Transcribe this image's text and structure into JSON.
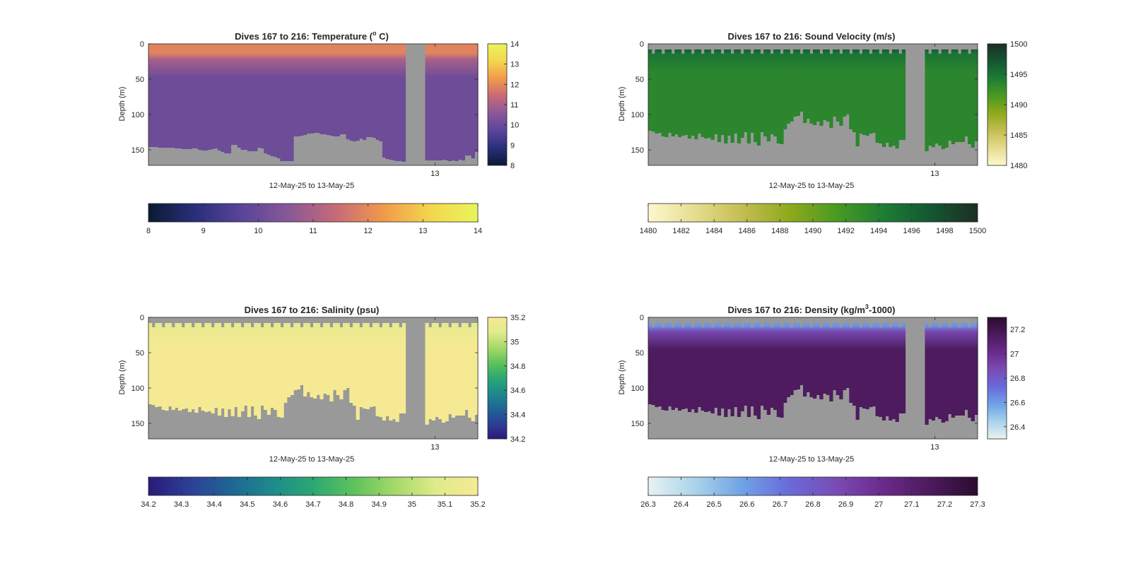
{
  "figure": {
    "background": "#ffffff",
    "nodata_color": "#999999",
    "frame_color": "#262626"
  },
  "chart_data": [
    {
      "id": "temperature",
      "type": "heatmap",
      "title": "Dives 167 to 216: Temperature (",
      "title_sup": "o",
      "title_end": " C)",
      "xlabel": "12-May-25 to 13-May-25",
      "ylabel": "Depth (m)",
      "ylim": [
        0,
        172
      ],
      "y_reversed": true,
      "yticks": [
        0,
        50,
        100,
        150
      ],
      "x_tick_labels": [
        "13"
      ],
      "x_tick_fraction": [
        0.87
      ],
      "clim": [
        8,
        14
      ],
      "colorbar_ticks": [
        8,
        9,
        10,
        11,
        12,
        13,
        14
      ],
      "colormap": [
        "#0a1a33",
        "#2a2f7a",
        "#5a459a",
        "#8a5896",
        "#c86a78",
        "#f19a4a",
        "#f3d64e",
        "#e8f55c"
      ],
      "profiles": {
        "n": 100,
        "gap": [
          0.778,
          0.84
        ],
        "bottom_depth": [
          146,
          146,
          146,
          147,
          147,
          147,
          147,
          147,
          148,
          148,
          149,
          149,
          149,
          148,
          148,
          150,
          151,
          151,
          150,
          149,
          148,
          151,
          153,
          155,
          155,
          143,
          143,
          147,
          150,
          150,
          152,
          152,
          152,
          147,
          148,
          155,
          157,
          159,
          160,
          162,
          166,
          166,
          166,
          166,
          131,
          131,
          130,
          129,
          127,
          127,
          126,
          126,
          128,
          128,
          129,
          130,
          131,
          131,
          128,
          128,
          135,
          137,
          138,
          137,
          134,
          136,
          132,
          132,
          133,
          136,
          138,
          161,
          163,
          164,
          165,
          166,
          166,
          167,
          167,
          167,
          166,
          166,
          166,
          166,
          165,
          165,
          165,
          165,
          165,
          164,
          165,
          166,
          165,
          166,
          164,
          165,
          158,
          158,
          162,
          153
        ],
        "surface_value": 11.9,
        "surface_depth": 22,
        "deep_value": 10.05
      }
    },
    {
      "id": "sound-velocity",
      "type": "heatmap",
      "title": "Dives 167 to 216: Sound Velocity (m/s)",
      "xlabel": "12-May-25 to 13-May-25",
      "ylabel": "Depth (m)",
      "ylim": [
        0,
        172
      ],
      "y_reversed": true,
      "yticks": [
        0,
        50,
        100,
        150
      ],
      "x_tick_labels": [
        "13"
      ],
      "x_tick_fraction": [
        0.87
      ],
      "clim": [
        1480,
        1500
      ],
      "colorbar_ticks": [
        1480,
        1482,
        1484,
        1486,
        1488,
        1490,
        1492,
        1494,
        1496,
        1498,
        1500
      ],
      "colorbar_side_ticks": [
        1480,
        1485,
        1490,
        1495,
        1500
      ],
      "colormap": [
        "#fdf8cf",
        "#e6dc8f",
        "#c3bd52",
        "#8fa91c",
        "#4a9a22",
        "#1d7d34",
        "#145733",
        "#1c2e22"
      ],
      "profiles": {
        "n": 100,
        "gap": [
          0.778,
          0.84
        ],
        "top_depth": [
          8,
          14,
          8,
          8,
          14,
          8,
          8,
          14,
          8,
          8,
          14,
          8,
          8,
          14,
          8,
          8,
          14,
          8,
          8,
          14,
          8,
          8,
          14,
          8,
          8,
          14,
          8,
          8,
          14,
          8,
          8,
          14,
          8,
          8,
          14,
          8,
          8,
          14,
          8,
          8,
          14,
          8,
          8,
          14,
          8,
          8,
          14,
          8,
          8,
          14,
          8,
          8,
          14,
          8,
          8,
          14,
          8,
          8,
          14,
          8,
          8,
          14,
          8,
          8,
          14,
          8,
          8,
          14,
          8,
          8,
          14,
          8,
          8,
          14,
          8,
          8,
          14,
          8,
          8,
          14,
          8,
          8,
          14,
          8,
          8,
          14,
          8,
          8,
          14,
          8,
          8,
          14,
          8,
          8,
          14,
          8,
          8,
          14,
          8,
          8
        ],
        "bottom_depth": [
          123,
          124,
          127,
          126,
          131,
          132,
          126,
          131,
          128,
          132,
          130,
          129,
          134,
          130,
          135,
          127,
          132,
          134,
          133,
          136,
          128,
          139,
          129,
          141,
          130,
          140,
          127,
          141,
          133,
          125,
          141,
          126,
          139,
          144,
          125,
          131,
          138,
          128,
          131,
          141,
          142,
          121,
          113,
          110,
          103,
          102,
          96,
          112,
          106,
          113,
          115,
          110,
          116,
          108,
          110,
          119,
          103,
          110,
          116,
          103,
          100,
          121,
          125,
          145,
          127,
          129,
          130,
          127,
          126,
          140,
          141,
          146,
          140,
          146,
          144,
          148,
          136,
          136,
          135,
          145,
          144,
          137,
          138,
          151,
          152,
          144,
          146,
          141,
          144,
          149,
          147,
          137,
          142,
          139,
          139,
          139,
          131,
          142,
          147,
          138
        ],
        "surface_value": 1496.6,
        "surface_depth": 14,
        "deep_value": 1493.4
      }
    },
    {
      "id": "salinity",
      "type": "heatmap",
      "title": "Dives 167 to 216: Salinity (psu)",
      "xlabel": "12-May-25 to 13-May-25",
      "ylabel": "Depth (m)",
      "ylim": [
        0,
        172
      ],
      "y_reversed": true,
      "yticks": [
        0,
        50,
        100,
        150
      ],
      "x_tick_labels": [
        "13"
      ],
      "x_tick_fraction": [
        0.87
      ],
      "clim": [
        34.2,
        35.2
      ],
      "colorbar_ticks": [
        34.2,
        34.3,
        34.4,
        34.5,
        34.6,
        34.7,
        34.8,
        34.9,
        35,
        35.1,
        35.2
      ],
      "colorbar_side_ticks": [
        34.2,
        34.4,
        34.6,
        34.8,
        35,
        35.2
      ],
      "colormap": [
        "#2b1a7a",
        "#2c3f96",
        "#1f6596",
        "#1e8a8c",
        "#2aa872",
        "#5fc25a",
        "#a6d96a",
        "#e0eb8a",
        "#f7ea94"
      ],
      "profiles": {
        "n": 100,
        "gap": [
          0.778,
          0.84
        ],
        "top_depth": [
          8,
          14,
          8,
          8,
          14,
          8,
          8,
          14,
          8,
          8,
          14,
          8,
          8,
          14,
          8,
          8,
          14,
          8,
          8,
          14,
          8,
          8,
          14,
          8,
          8,
          14,
          8,
          8,
          14,
          8,
          8,
          14,
          8,
          8,
          14,
          8,
          8,
          14,
          8,
          8,
          14,
          8,
          8,
          14,
          8,
          8,
          14,
          8,
          8,
          14,
          8,
          8,
          14,
          8,
          8,
          14,
          8,
          8,
          14,
          8,
          8,
          14,
          8,
          8,
          14,
          8,
          8,
          14,
          8,
          8,
          14,
          8,
          8,
          14,
          8,
          8,
          14,
          8,
          8,
          14,
          8,
          8,
          14,
          8,
          8,
          14,
          8,
          8,
          14,
          8,
          8,
          14,
          8,
          8,
          14,
          8,
          8,
          14,
          8,
          8
        ],
        "bottom_depth": [
          123,
          124,
          127,
          126,
          131,
          132,
          126,
          131,
          128,
          132,
          130,
          129,
          134,
          130,
          135,
          127,
          132,
          134,
          133,
          136,
          128,
          139,
          129,
          141,
          130,
          140,
          127,
          141,
          133,
          125,
          141,
          126,
          139,
          144,
          125,
          131,
          138,
          128,
          131,
          141,
          142,
          121,
          113,
          110,
          103,
          102,
          96,
          112,
          106,
          113,
          115,
          110,
          116,
          108,
          110,
          119,
          103,
          110,
          116,
          103,
          100,
          121,
          125,
          145,
          127,
          129,
          130,
          127,
          126,
          140,
          141,
          146,
          140,
          146,
          144,
          148,
          136,
          136,
          135,
          145,
          144,
          137,
          138,
          151,
          152,
          144,
          146,
          141,
          144,
          149,
          147,
          137,
          142,
          139,
          139,
          139,
          131,
          142,
          147,
          138
        ],
        "surface_value": 35.1,
        "surface_depth": 18,
        "deep_value": 35.19
      }
    },
    {
      "id": "density",
      "type": "heatmap",
      "title": "Dives 167 to 216: Density (kg/m",
      "title_sup": "3",
      "title_end": "-1000)",
      "xlabel": "12-May-25 to 13-May-25",
      "ylabel": "Depth (m)",
      "ylim": [
        0,
        172
      ],
      "y_reversed": true,
      "yticks": [
        0,
        50,
        100,
        150
      ],
      "x_tick_labels": [
        "13"
      ],
      "x_tick_fraction": [
        0.87
      ],
      "clim": [
        26.3,
        27.3
      ],
      "colorbar_ticks": [
        26.3,
        26.4,
        26.5,
        26.6,
        26.7,
        26.8,
        26.9,
        27,
        27.1,
        27.2,
        27.3
      ],
      "colorbar_side_ticks": [
        26.4,
        26.6,
        26.8,
        27,
        27.2
      ],
      "colormap": [
        "#e9f2f2",
        "#a9d3ea",
        "#6fa2e6",
        "#6a6ad9",
        "#7a4bb4",
        "#6a2a8c",
        "#4b1a5c",
        "#2b0c2f"
      ],
      "profiles": {
        "n": 100,
        "gap": [
          0.778,
          0.84
        ],
        "top_depth": [
          8,
          14,
          8,
          8,
          14,
          8,
          8,
          14,
          8,
          8,
          14,
          8,
          8,
          14,
          8,
          8,
          14,
          8,
          8,
          14,
          8,
          8,
          14,
          8,
          8,
          14,
          8,
          8,
          14,
          8,
          8,
          14,
          8,
          8,
          14,
          8,
          8,
          14,
          8,
          8,
          14,
          8,
          8,
          14,
          8,
          8,
          14,
          8,
          8,
          14,
          8,
          8,
          14,
          8,
          8,
          14,
          8,
          8,
          14,
          8,
          8,
          14,
          8,
          8,
          14,
          8,
          8,
          14,
          8,
          8,
          14,
          8,
          8,
          14,
          8,
          8,
          14,
          8,
          8,
          14,
          8,
          8,
          14,
          8,
          8,
          14,
          8,
          8,
          14,
          8,
          8,
          14,
          8,
          8,
          14,
          8,
          8,
          14,
          8,
          8
        ],
        "bottom_depth": [
          123,
          124,
          127,
          126,
          131,
          132,
          126,
          131,
          128,
          132,
          130,
          129,
          134,
          130,
          135,
          127,
          132,
          134,
          133,
          136,
          128,
          139,
          129,
          141,
          130,
          140,
          127,
          141,
          133,
          125,
          141,
          126,
          139,
          144,
          125,
          131,
          138,
          128,
          131,
          141,
          142,
          121,
          113,
          110,
          103,
          102,
          96,
          112,
          106,
          113,
          115,
          110,
          116,
          108,
          110,
          119,
          103,
          110,
          116,
          103,
          100,
          121,
          125,
          145,
          127,
          129,
          130,
          127,
          126,
          140,
          141,
          146,
          140,
          146,
          144,
          148,
          136,
          136,
          135,
          145,
          144,
          137,
          138,
          151,
          152,
          144,
          146,
          141,
          144,
          149,
          147,
          137,
          142,
          139,
          139,
          139,
          131,
          142,
          147,
          138
        ],
        "surface_value": 26.62,
        "surface_depth": 20,
        "deep_value": 27.15
      }
    }
  ]
}
